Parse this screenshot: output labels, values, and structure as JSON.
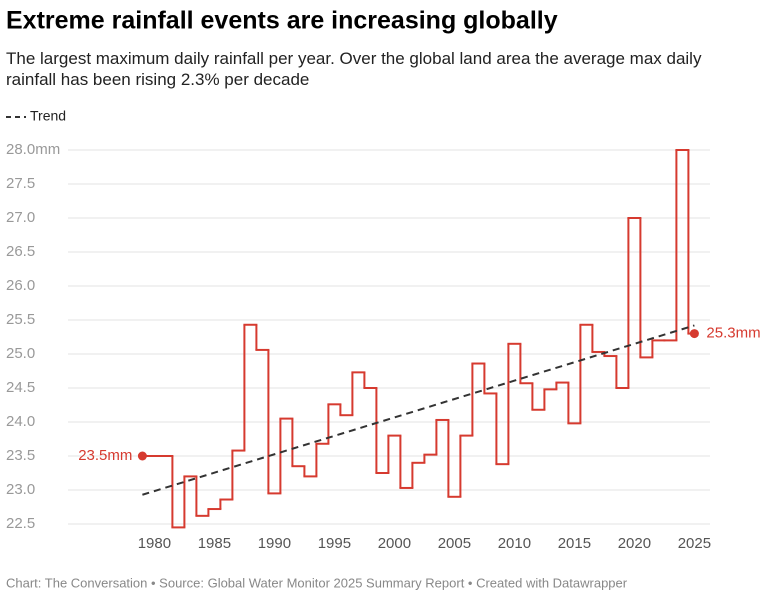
{
  "chart_data": {
    "type": "step",
    "title": "Extreme rainfall events are increasing globally",
    "subtitle": "The largest maximum daily rainfall per year. Over the global land area the average max daily rainfall has been rising 2.3% per decade",
    "footer": "Chart: The Conversation • Source: Global Water Monitor 2025 Summary Report • Created with Datawrapper",
    "x": [
      1979,
      1980,
      1981,
      1982,
      1983,
      1984,
      1985,
      1986,
      1987,
      1988,
      1989,
      1990,
      1991,
      1992,
      1993,
      1994,
      1995,
      1996,
      1997,
      1998,
      1999,
      2000,
      2001,
      2002,
      2003,
      2004,
      2005,
      2006,
      2007,
      2008,
      2009,
      2010,
      2011,
      2012,
      2013,
      2014,
      2015,
      2016,
      2017,
      2018,
      2019,
      2020,
      2021,
      2022,
      2023,
      2024,
      2025
    ],
    "series": [
      {
        "name": "Max daily rainfall",
        "color": "#d63a2f",
        "values": [
          23.5,
          23.5,
          23.5,
          22.45,
          23.2,
          22.62,
          22.72,
          22.86,
          23.58,
          25.43,
          25.06,
          22.95,
          24.05,
          23.35,
          23.2,
          23.68,
          24.26,
          24.1,
          24.73,
          24.5,
          23.25,
          23.8,
          23.03,
          23.4,
          23.52,
          24.03,
          22.9,
          23.8,
          24.86,
          24.42,
          23.38,
          25.15,
          24.57,
          24.18,
          24.48,
          24.58,
          23.98,
          25.43,
          25.03,
          24.97,
          24.5,
          27.0,
          24.95,
          25.2,
          25.2,
          28.0,
          25.3
        ],
        "value_labels": [
          "23.5mm",
          null,
          null,
          null,
          null,
          null,
          null,
          null,
          null,
          null,
          null,
          null,
          null,
          null,
          null,
          null,
          null,
          null,
          null,
          null,
          null,
          null,
          null,
          null,
          null,
          null,
          null,
          null,
          null,
          null,
          null,
          null,
          null,
          null,
          null,
          null,
          null,
          null,
          null,
          null,
          null,
          null,
          null,
          null,
          null,
          null,
          "25.3mm"
        ]
      },
      {
        "name": "Trend",
        "color": "#333333",
        "dashed": true,
        "x": [
          1979,
          2025
        ],
        "values": [
          22.93,
          25.42
        ]
      }
    ],
    "xlim": [
      1972.8,
      2026.3
    ],
    "ylim": [
      22.5,
      28.0
    ],
    "xticks": [
      1980,
      1985,
      1990,
      1995,
      2000,
      2005,
      2010,
      2015,
      2020,
      2025
    ],
    "yticks": [
      22.5,
      {
        "value": 23,
        "label": "23.0"
      },
      23.5,
      {
        "value": 24,
        "label": "24.0"
      },
      24.5,
      {
        "value": 25,
        "label": "25.0"
      },
      25.5,
      {
        "value": 26,
        "label": "26.0"
      },
      26.5,
      {
        "value": 27,
        "label": "27.0"
      },
      27.5,
      {
        "value": 28,
        "label": "28.0mm"
      }
    ],
    "grid": true
  }
}
